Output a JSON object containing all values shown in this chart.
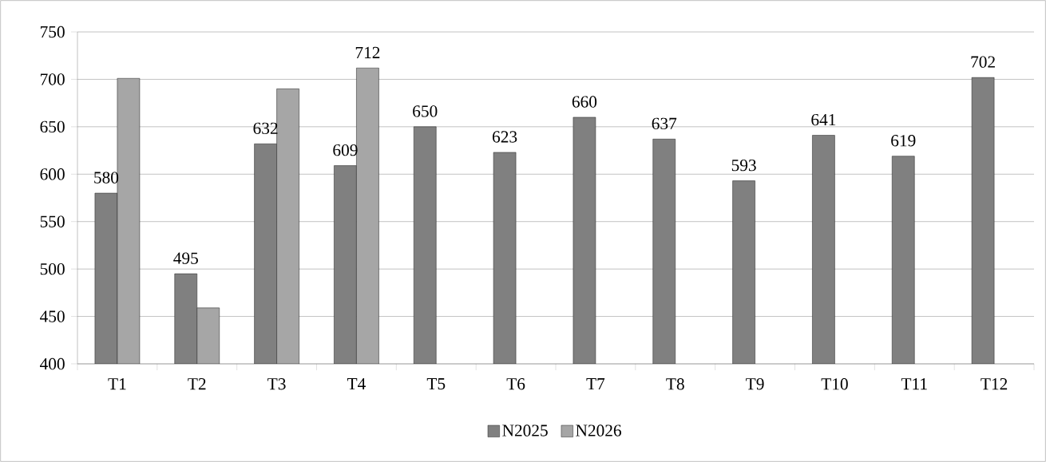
{
  "chart_data": {
    "type": "bar",
    "categories": [
      "T1",
      "T2",
      "T3",
      "T4",
      "T5",
      "T6",
      "T7",
      "T8",
      "T9",
      "T10",
      "T11",
      "T12"
    ],
    "series": [
      {
        "name": "N2025",
        "color": "#808080",
        "values": [
          580,
          495,
          632,
          609,
          650,
          623,
          660,
          637,
          593,
          641,
          619,
          702
        ],
        "value_labels": [
          "580",
          "495",
          "632",
          "609",
          "650",
          "623",
          "660",
          "637",
          "593",
          "641",
          "619",
          "702"
        ]
      },
      {
        "name": "N2026",
        "color": "#a6a6a6",
        "values": [
          701,
          459,
          690,
          712,
          null,
          null,
          null,
          null,
          null,
          null,
          null,
          null
        ],
        "value_labels": [
          null,
          null,
          null,
          "712",
          null,
          null,
          null,
          null,
          null,
          null,
          null,
          null
        ]
      }
    ],
    "ylim": [
      400,
      750
    ],
    "yticks": [
      400,
      450,
      500,
      550,
      600,
      650,
      700,
      750
    ],
    "grid": "y",
    "legend": "bottom"
  }
}
